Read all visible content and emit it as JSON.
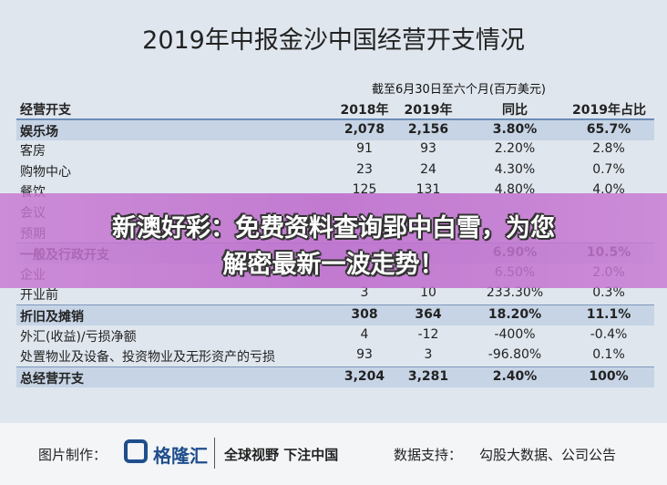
{
  "title": "2019年中报金沙中国经营开支情况",
  "table": {
    "super_header": "截至6月30日至六个月(百万美元)",
    "header": [
      "经营开支",
      "2018年",
      "2019年",
      "同比",
      "2019年占比"
    ],
    "rows": [
      {
        "label": "娱乐场",
        "v2018": "2,078",
        "v2019": "2,156",
        "yoy": "3.80%",
        "share": "65.7%",
        "bold": true
      },
      {
        "label": "客房",
        "v2018": "91",
        "v2019": "93",
        "yoy": "2.20%",
        "share": "2.8%"
      },
      {
        "label": "购物中心",
        "v2018": "23",
        "v2019": "24",
        "yoy": "4.30%",
        "share": "0.7%"
      },
      {
        "label": "餐饮",
        "v2018": "125",
        "v2019": "131",
        "yoy": "4.80%",
        "share": "4.0%"
      },
      {
        "label": "会议"
      },
      {
        "label": "预期"
      },
      {
        "label": "一般及行政开支",
        "yoy": "6.90%",
        "share": "10.5%",
        "bold": true
      },
      {
        "label": "企业",
        "yoy": "6.50%",
        "share": "2.0%"
      },
      {
        "label": "开业前",
        "v2018": "3",
        "v2019": "10",
        "yoy": "233.30%",
        "share": "0.3%"
      },
      {
        "label": "折旧及摊销",
        "v2018": "308",
        "v2019": "364",
        "yoy": "18.20%",
        "share": "11.1%",
        "bold": true
      },
      {
        "label": "外汇(收益)/亏损净额",
        "v2018": "4",
        "v2019": "-12",
        "yoy": "-400%",
        "share": "-0.4%"
      },
      {
        "label": "处置物业及设备、投资物业及无形资产的亏损",
        "v2018": "93",
        "v2019": "3",
        "yoy": "-96.80%",
        "share": "0.1%"
      },
      {
        "label": "总经营开支",
        "v2018": "3,204",
        "v2019": "3,281",
        "yoy": "2.40%",
        "share": "100%",
        "bold": true
      }
    ]
  },
  "banner": [
    "新澳好彩：免费资料查询郢中白雪，为您",
    "解密最新一波走势！"
  ],
  "footer": {
    "made_by": "图片制作：",
    "brand": "格隆汇",
    "slogan": "全球视野 下注中国",
    "source_label": "数据支持：",
    "source": "勾股大数据、公司公告"
  }
}
